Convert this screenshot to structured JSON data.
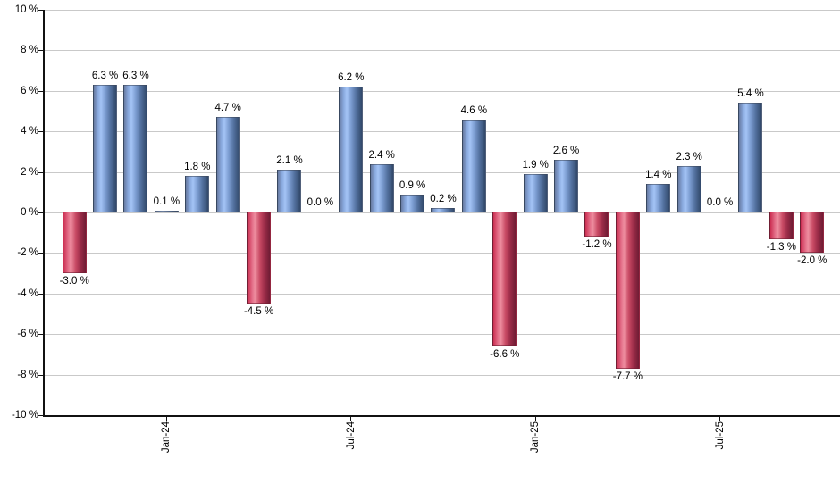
{
  "chart_data": {
    "type": "bar",
    "title": "",
    "xlabel": "",
    "ylabel": "",
    "ylim": [
      -10,
      10
    ],
    "grid": true,
    "legend": "none",
    "values": [
      -3.0,
      6.3,
      6.3,
      0.1,
      1.8,
      4.7,
      -4.5,
      2.1,
      0.0,
      6.2,
      2.4,
      0.9,
      0.2,
      4.6,
      -6.6,
      1.9,
      2.6,
      -1.2,
      -7.7,
      1.4,
      2.3,
      0.0,
      5.4,
      -1.3,
      -2.0
    ],
    "bar_labels": [
      "-3.0 %",
      "6.3 %",
      "6.3 %",
      "0.1 %",
      "1.8 %",
      "4.7 %",
      "-4.5 %",
      "2.1 %",
      "0.0 %",
      "6.2 %",
      "2.4 %",
      "0.9 %",
      "0.2 %",
      "4.6 %",
      "-6.6 %",
      "1.9 %",
      "2.6 %",
      "-1.2 %",
      "-7.7 %",
      "1.4 %",
      "2.3 %",
      "0.0 %",
      "5.4 %",
      "-1.3 %",
      "-2.0 %"
    ],
    "x_ticks": [
      {
        "index": 3,
        "label": "Jan-24"
      },
      {
        "index": 9,
        "label": "Jul-24"
      },
      {
        "index": 15,
        "label": "Jan-25"
      },
      {
        "index": 21,
        "label": "Jul-25"
      }
    ],
    "y_ticks": [
      {
        "value": 10,
        "label": "10 %"
      },
      {
        "value": 8,
        "label": "8 %"
      },
      {
        "value": 6,
        "label": "6 %"
      },
      {
        "value": 4,
        "label": "4 %"
      },
      {
        "value": 2,
        "label": "2 %"
      },
      {
        "value": 0,
        "label": "0 %"
      },
      {
        "value": -2,
        "label": "-2 %"
      },
      {
        "value": -4,
        "label": "-4 %"
      },
      {
        "value": -6,
        "label": "-6 %"
      },
      {
        "value": -8,
        "label": "-8 %"
      },
      {
        "value": -10,
        "label": "-10 %"
      }
    ],
    "colors": {
      "positive_edge": "#687ba2",
      "positive_light": "#a4c4f6",
      "positive_dark": "#31486a",
      "negative_edge": "#cb2d51",
      "negative_light": "#ee8d9f",
      "negative_dark": "#6f1c34",
      "axis": "#111111",
      "gridline": "#c9c9c9",
      "label_text": "#000000"
    }
  }
}
